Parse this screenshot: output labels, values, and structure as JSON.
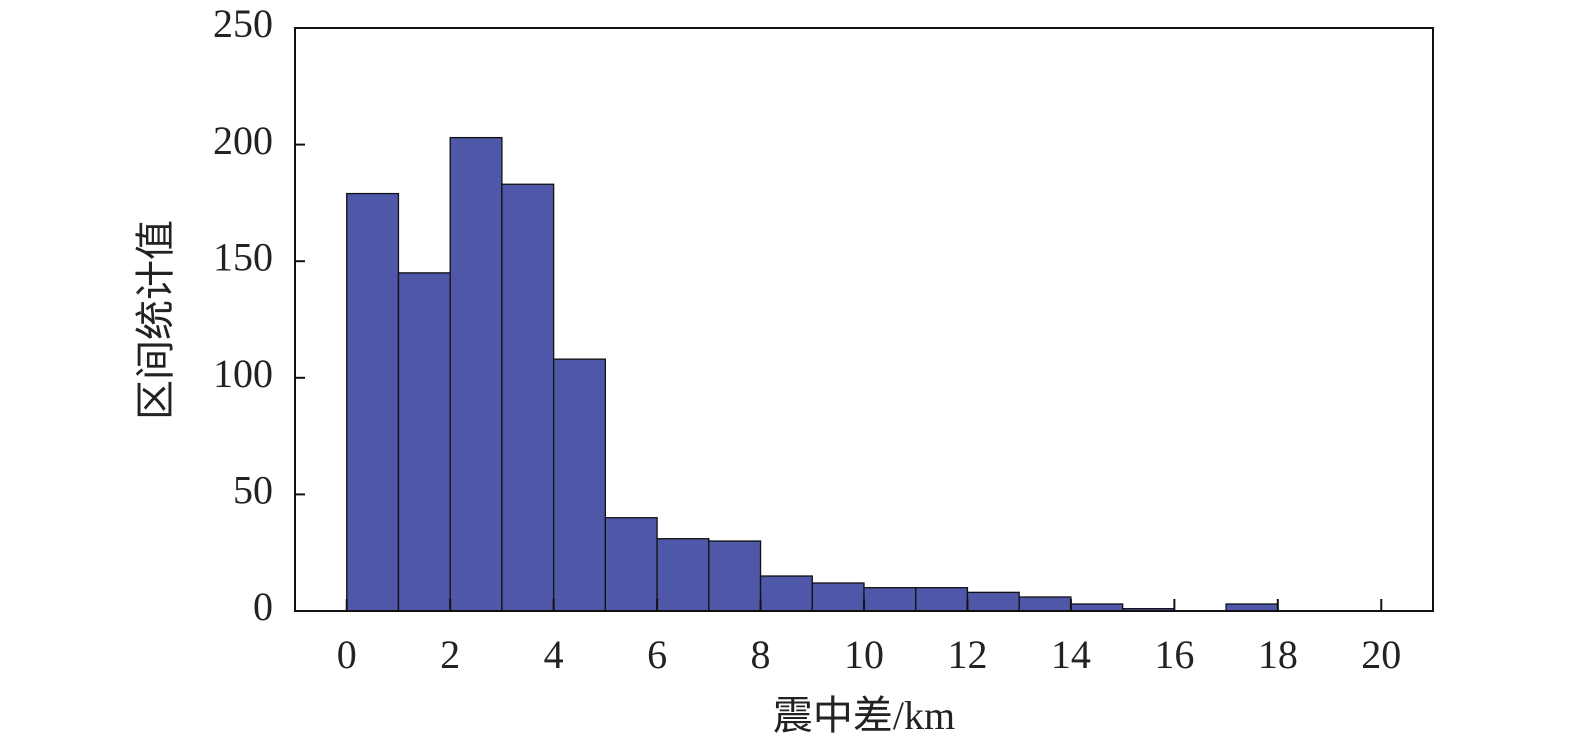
{
  "chart_data": {
    "type": "histogram",
    "xlabel": "震中差/km",
    "ylabel": "区间统计值",
    "bins": [
      0,
      1,
      2,
      3,
      4,
      5,
      6,
      7,
      8,
      9,
      10,
      11,
      12,
      13,
      14,
      15,
      16,
      17,
      18,
      19,
      20
    ],
    "values": [
      179,
      145,
      203,
      183,
      108,
      40,
      31,
      30,
      15,
      12,
      10,
      10,
      8,
      6,
      3,
      1,
      0,
      3,
      0,
      0
    ],
    "color": "#4f57a8",
    "xlim": [
      -1,
      21
    ],
    "xticks": [
      0,
      2,
      4,
      6,
      8,
      10,
      12,
      14,
      16,
      18,
      20
    ],
    "ylim": [
      0,
      250
    ],
    "yticks": [
      0,
      50,
      100,
      150,
      200,
      250
    ]
  }
}
